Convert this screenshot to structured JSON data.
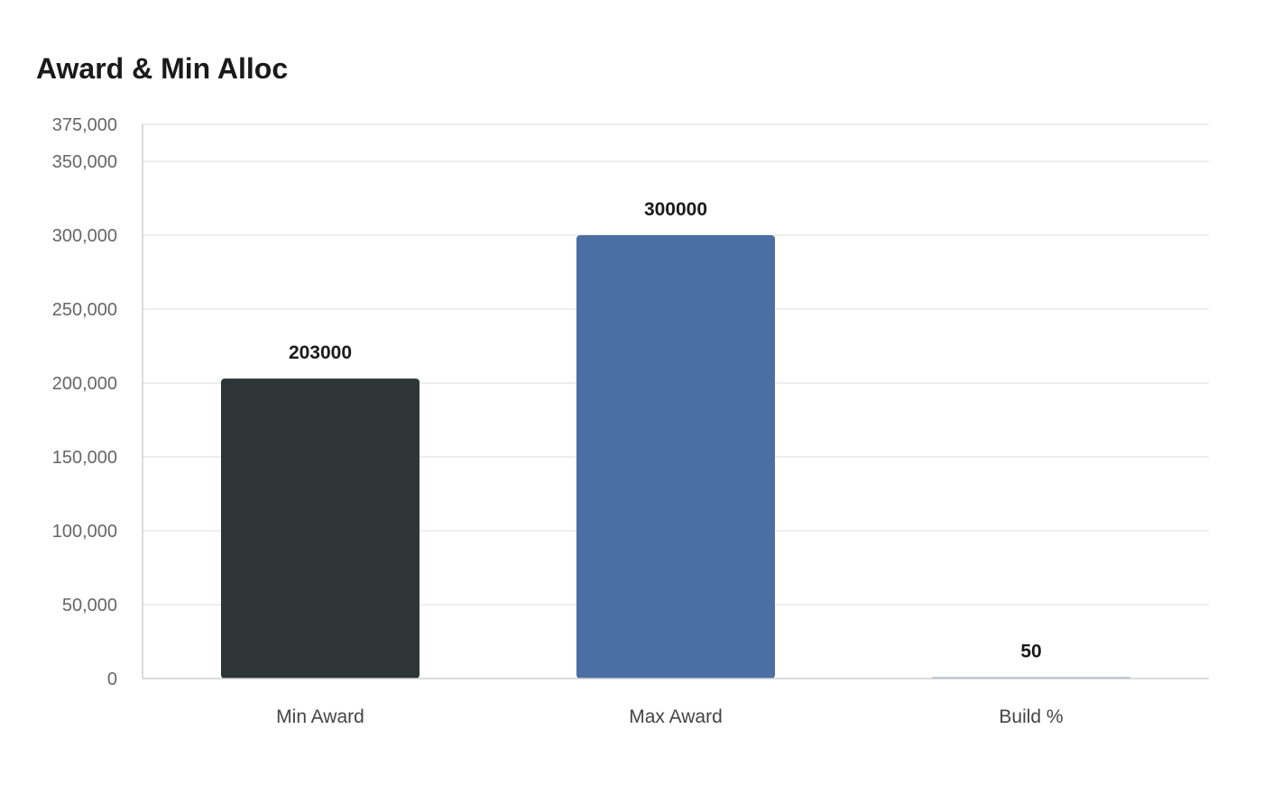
{
  "chart_data": {
    "type": "bar",
    "title": "Award & Min Alloc",
    "categories": [
      "Min Award",
      "Max Award",
      "Build %"
    ],
    "values": [
      203000,
      300000,
      50
    ],
    "data_labels": [
      "203000",
      "300000",
      "50"
    ],
    "bar_colors": [
      "#2e3537",
      "#4b6ea3",
      "#8a9ab3"
    ],
    "ylim": [
      0,
      375000
    ],
    "yticks": [
      0,
      50000,
      100000,
      150000,
      200000,
      250000,
      300000,
      350000,
      375000
    ],
    "ytick_labels": [
      "0",
      "50,000",
      "100,000",
      "150,000",
      "200,000",
      "250,000",
      "300,000",
      "350,000",
      "375,000"
    ],
    "xlabel": "",
    "ylabel": "",
    "grid": true,
    "legend": "none"
  }
}
